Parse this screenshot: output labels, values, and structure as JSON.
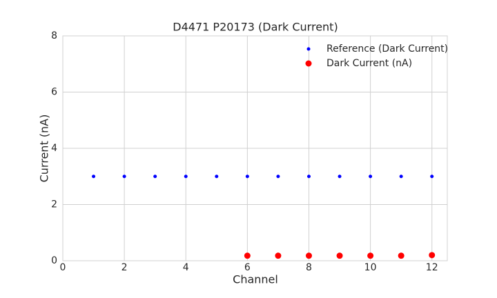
{
  "chart_data": {
    "type": "scatter",
    "title": "D4471 P20173 (Dark Current)",
    "x_label": "Channel",
    "y_label": "Current (nA)",
    "series": [
      {
        "name": "Reference (Dark Current)",
        "color": "#0000ff",
        "x": [
          1,
          2,
          3,
          4,
          5,
          6,
          7,
          8,
          9,
          10,
          11,
          12
        ],
        "values": [
          3,
          3,
          3,
          3,
          3,
          3,
          3,
          3,
          3,
          3,
          3,
          3
        ]
      },
      {
        "name": "Dark Current (nA)",
        "color": "#ff0000",
        "x": [
          6,
          7,
          8,
          9,
          10,
          11,
          12
        ],
        "values": [
          0.18,
          0.18,
          0.18,
          0.18,
          0.18,
          0.18,
          0.2
        ]
      }
    ],
    "xlim": [
      0,
      12.5
    ],
    "xticks": [
      0,
      2,
      4,
      6,
      8,
      10,
      12
    ],
    "ylim": [
      0,
      8
    ],
    "yticks": [
      0,
      2,
      4,
      6,
      8
    ],
    "grid": true,
    "legend": "upper right"
  }
}
